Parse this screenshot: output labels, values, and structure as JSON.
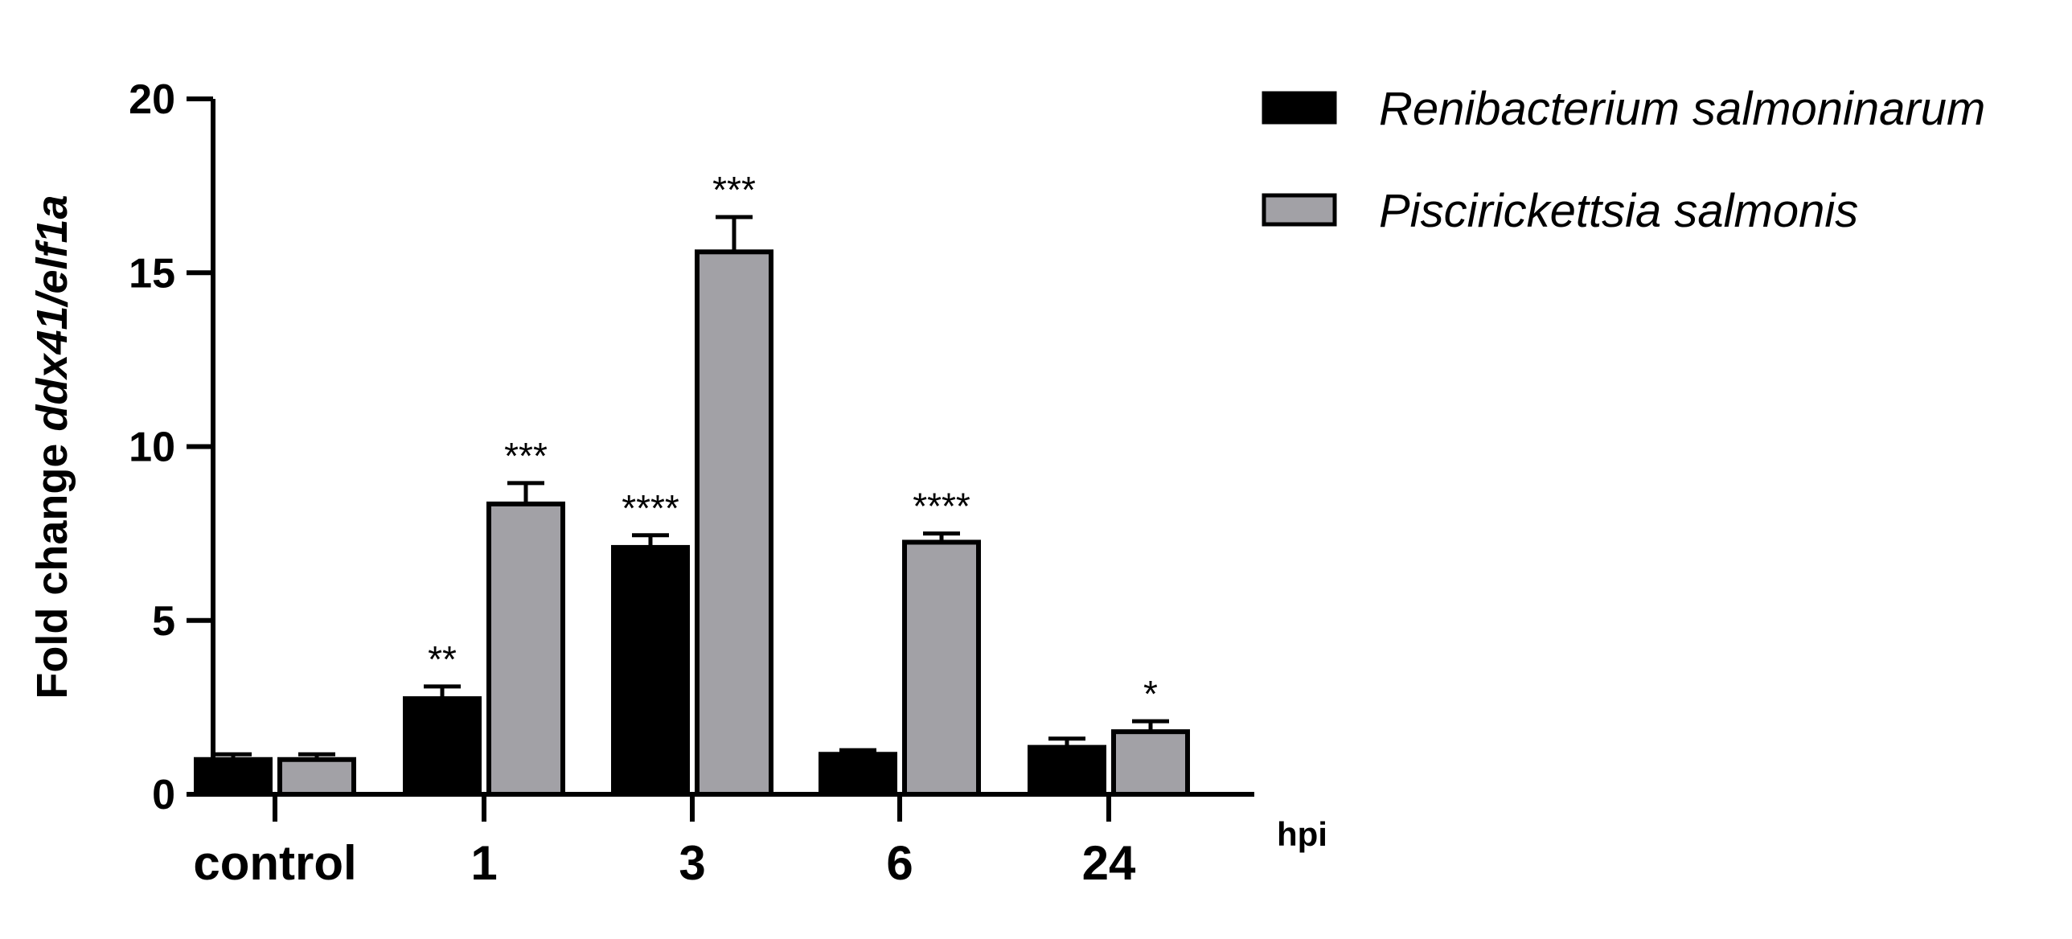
{
  "chart_data": {
    "type": "bar",
    "ylabel_prefix": "Fold change ",
    "ylabel_gene": "ddx41/elf1a",
    "x_unit": "hpi",
    "categories": [
      "control",
      "1",
      "3",
      "6",
      "24"
    ],
    "ylim": [
      0,
      20
    ],
    "yticks": [
      "0",
      "5",
      "10",
      "15",
      "20"
    ],
    "legend_position": "top-right",
    "grid": false,
    "series": [
      {
        "name": "Renibacterium salmoninarum",
        "color": "#000000",
        "values": [
          1.0,
          2.75,
          7.1,
          1.15,
          1.35
        ],
        "errors": [
          0.15,
          0.35,
          0.35,
          0.12,
          0.25
        ],
        "significance": [
          "",
          "**",
          "****",
          "",
          ""
        ]
      },
      {
        "name": "Piscirickettsia salmonis",
        "color": "#a2a1a6",
        "values": [
          1.0,
          8.35,
          15.6,
          7.25,
          1.8
        ],
        "errors": [
          0.15,
          0.6,
          1.0,
          0.25,
          0.3
        ],
        "significance": [
          "",
          "***",
          "***",
          "****",
          "*"
        ]
      }
    ]
  }
}
